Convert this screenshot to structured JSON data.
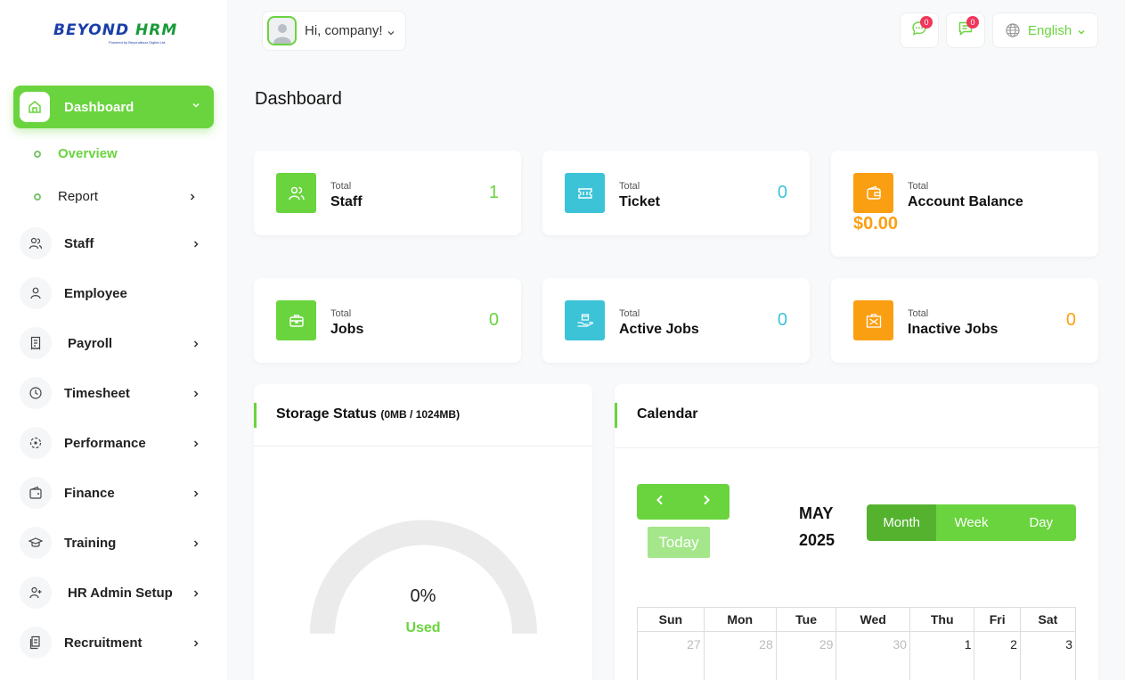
{
  "logo": {
    "brand_a": "BEYOND",
    "brand_b": "HRM",
    "tagline": "Powered by Beyondbuzz Digital Ltd."
  },
  "sidebar": {
    "active": {
      "label": "Dashboard"
    },
    "subitems": [
      {
        "label": "Overview"
      },
      {
        "label": "Report"
      }
    ],
    "items": [
      {
        "label": "Staff"
      },
      {
        "label": "Employee"
      },
      {
        "label": "Payroll"
      },
      {
        "label": "Timesheet"
      },
      {
        "label": "Performance"
      },
      {
        "label": "Finance"
      },
      {
        "label": "Training"
      },
      {
        "label": "HR Admin Setup"
      },
      {
        "label": "Recruitment"
      }
    ]
  },
  "header": {
    "greeting": "Hi, company!",
    "messages_count": "0",
    "chat_count": "0",
    "language": "English"
  },
  "page_title": "Dashboard",
  "stats": {
    "staff": {
      "small": "Total",
      "label": "Staff",
      "value": "1"
    },
    "ticket": {
      "small": "Total",
      "label": "Ticket",
      "value": "0"
    },
    "balance": {
      "small": "Total",
      "label": "Account Balance",
      "value": "$0.00"
    },
    "jobs": {
      "small": "Total",
      "label": "Jobs",
      "value": "0"
    },
    "active_jobs": {
      "small": "Total",
      "label": "Active Jobs",
      "value": "0"
    },
    "inactive_jobs": {
      "small": "Total",
      "label": "Inactive Jobs",
      "value": "0"
    }
  },
  "storage": {
    "title": "Storage Status",
    "detail": "(0MB / 1024MB)",
    "percent": "0%",
    "used_label": "Used",
    "used_fraction": 0
  },
  "calendar": {
    "title": "Calendar",
    "month": "MAY",
    "year": "2025",
    "today_label": "Today",
    "views": [
      "Month",
      "Week",
      "Day"
    ],
    "weekdays": [
      "Sun",
      "Mon",
      "Tue",
      "Wed",
      "Thu",
      "Fri",
      "Sat"
    ],
    "first_row": [
      "27",
      "28",
      "29",
      "30",
      "1",
      "2",
      "3"
    ]
  },
  "colors": {
    "accent": "#6ad43e",
    "teal": "#3cc3d8",
    "orange": "#fb9f12",
    "badge": "#f0365a"
  }
}
